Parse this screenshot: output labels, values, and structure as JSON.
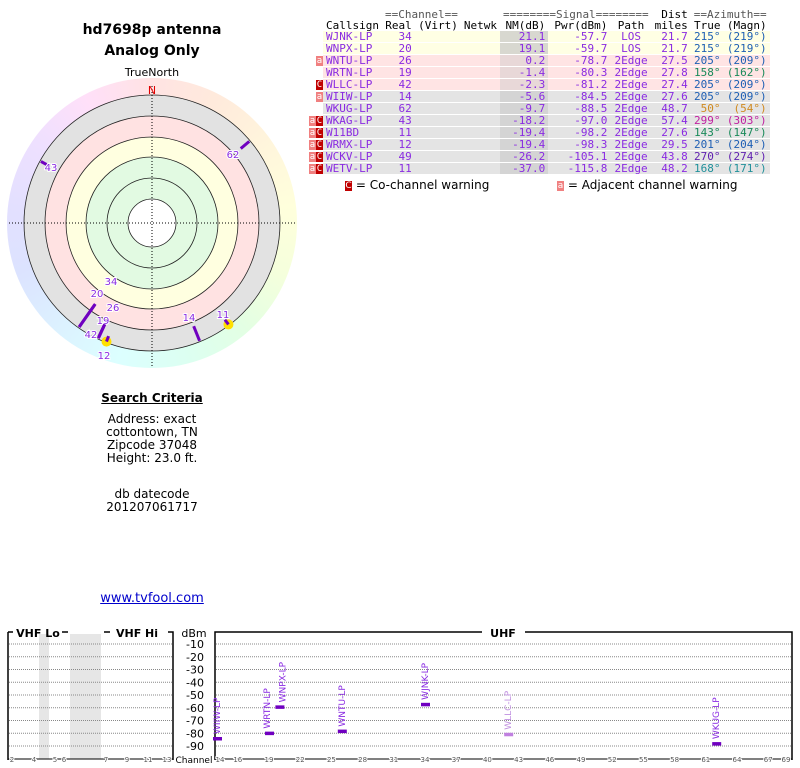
{
  "header": {
    "title": "hd7698p antenna",
    "subtitle": "Analog Only"
  },
  "polar": {
    "north_label": "TrueNorth",
    "n_marker": "N",
    "markers": [
      {
        "label": "34",
        "azimuth": 215,
        "nm": 21.1
      },
      {
        "label": "20",
        "azimuth": 215,
        "nm": 19.1
      },
      {
        "label": "26",
        "azimuth": 205,
        "nm": 0.2
      },
      {
        "label": "19",
        "azimuth": 158,
        "nm": -1.4
      },
      {
        "label": "42",
        "azimuth": 205,
        "nm": -2.3
      },
      {
        "label": "14",
        "azimuth": 205,
        "nm": -5.6
      },
      {
        "label": "62",
        "azimuth": 50,
        "nm": -9.7
      },
      {
        "label": "43",
        "azimuth": 299,
        "nm": -18.2
      },
      {
        "label": "11",
        "azimuth": 143,
        "nm": -19.4,
        "highlight": true
      },
      {
        "label": "12",
        "azimuth": 201,
        "nm": -19.4,
        "highlight": true
      }
    ]
  },
  "search": {
    "heading": "Search Criteria",
    "address": "Address: exact",
    "city": "cottontown, TN",
    "zip": "Zipcode 37048",
    "height": "Height: 23.0 ft.",
    "db_label": "db datecode",
    "db_value": "201207061717",
    "link": "www.tvfool.com"
  },
  "table": {
    "group_headers": {
      "channel": "==Channel==",
      "signal": "========Signal========",
      "dist": "Dist",
      "azimuth": "==Azimuth=="
    },
    "columns": [
      "Callsign",
      "Real",
      "(Virt)",
      "Netwk",
      "NM(dB)",
      "Pwr(dBm)",
      "Path",
      "miles",
      "True",
      "(Magn)"
    ],
    "rows": [
      {
        "warn": "",
        "band": "y",
        "callsign": "WJNK-LP",
        "real": "34",
        "virt": "",
        "netwk": "",
        "nm": "21.1",
        "pwr": "-57.7",
        "path": "LOS",
        "dist": "21.7",
        "true": "215°",
        "magn": "(219°)",
        "az_color": "#1e5fb4"
      },
      {
        "warn": "",
        "band": "y",
        "callsign": "WNPX-LP",
        "real": "20",
        "virt": "",
        "netwk": "",
        "nm": "19.1",
        "pwr": "-59.7",
        "path": "LOS",
        "dist": "21.7",
        "true": "215°",
        "magn": "(219°)",
        "az_color": "#1e5fb4"
      },
      {
        "warn": "a",
        "band": "p",
        "callsign": "WNTU-LP",
        "real": "26",
        "virt": "",
        "netwk": "",
        "nm": "0.2",
        "pwr": "-78.7",
        "path": "2Edge",
        "dist": "27.5",
        "true": "205°",
        "magn": "(209°)",
        "az_color": "#1e5fb4"
      },
      {
        "warn": "",
        "band": "p",
        "callsign": "WRTN-LP",
        "real": "19",
        "virt": "",
        "netwk": "",
        "nm": "-1.4",
        "pwr": "-80.3",
        "path": "2Edge",
        "dist": "27.8",
        "true": "158°",
        "magn": "(162°)",
        "az_color": "#1a8a5a"
      },
      {
        "warn": "C",
        "band": "p",
        "callsign": "WLLC-LP",
        "real": "42",
        "virt": "",
        "netwk": "",
        "nm": "-2.3",
        "pwr": "-81.2",
        "path": "2Edge",
        "dist": "27.4",
        "true": "205°",
        "magn": "(209°)",
        "az_color": "#1e5fb4"
      },
      {
        "warn": "a",
        "band": "g",
        "callsign": "WIIW-LP",
        "real": "14",
        "virt": "",
        "netwk": "",
        "nm": "-5.6",
        "pwr": "-84.5",
        "path": "2Edge",
        "dist": "27.6",
        "true": "205°",
        "magn": "(209°)",
        "az_color": "#1e5fb4"
      },
      {
        "warn": "",
        "band": "g",
        "callsign": "WKUG-LP",
        "real": "62",
        "virt": "",
        "netwk": "",
        "nm": "-9.7",
        "pwr": "-88.5",
        "path": "2Edge",
        "dist": "48.7",
        "true": "50°",
        "magn": "(54°)",
        "az_color": "#d08a20"
      },
      {
        "warn": "aC",
        "band": "g",
        "callsign": "WKAG-LP",
        "real": "43",
        "virt": "",
        "netwk": "",
        "nm": "-18.2",
        "pwr": "-97.0",
        "path": "2Edge",
        "dist": "57.4",
        "true": "299°",
        "magn": "(303°)",
        "az_color": "#c020a0"
      },
      {
        "warn": "aC",
        "band": "g",
        "callsign": "W11BD",
        "real": "11",
        "virt": "",
        "netwk": "",
        "nm": "-19.4",
        "pwr": "-98.2",
        "path": "2Edge",
        "dist": "27.6",
        "true": "143°",
        "magn": "(147°)",
        "az_color": "#1a8a5a"
      },
      {
        "warn": "aC",
        "band": "g",
        "callsign": "WRMX-LP",
        "real": "12",
        "virt": "",
        "netwk": "",
        "nm": "-19.4",
        "pwr": "-98.3",
        "path": "2Edge",
        "dist": "29.5",
        "true": "201°",
        "magn": "(204°)",
        "az_color": "#1e5fb4"
      },
      {
        "warn": "aC",
        "band": "g",
        "callsign": "WCKV-LP",
        "real": "49",
        "virt": "",
        "netwk": "",
        "nm": "-26.2",
        "pwr": "-105.1",
        "path": "2Edge",
        "dist": "43.8",
        "true": "270°",
        "magn": "(274°)",
        "az_color": "#6020b0"
      },
      {
        "warn": "aC",
        "band": "g",
        "callsign": "WETV-LP",
        "real": "11",
        "virt": "",
        "netwk": "",
        "nm": "-37.0",
        "pwr": "-115.8",
        "path": "2Edge",
        "dist": "48.2",
        "true": "168°",
        "magn": "(171°)",
        "az_color": "#20909a"
      }
    ],
    "legend": {
      "co_symbol": "C",
      "co_text": "= Co-channel warning",
      "adj_symbol": "a",
      "adj_text": "= Adjacent channel warning"
    }
  },
  "spectrum": {
    "vhf_lo": "VHF Lo",
    "vhf_hi": "VHF Hi",
    "uhf": "UHF",
    "dbm_label": "dBm",
    "channel_label": "Channel",
    "dbm_ticks": [
      "-10",
      "-20",
      "-30",
      "-40",
      "-50",
      "-60",
      "-70",
      "-80",
      "-90"
    ],
    "vhf_channels": [
      "2",
      "4",
      "5",
      "6",
      "7",
      "9",
      "11",
      "13"
    ],
    "uhf_channels": [
      "14",
      "16",
      "19",
      "22",
      "25",
      "28",
      "31",
      "34",
      "37",
      "40",
      "43",
      "46",
      "49",
      "52",
      "55",
      "58",
      "61",
      "64",
      "67",
      "69"
    ],
    "stations": [
      {
        "callsign": "WIIW-LP",
        "channel": 14,
        "pwr": -84.5
      },
      {
        "callsign": "WRTN-LP",
        "channel": 19,
        "pwr": -80.3
      },
      {
        "callsign": "WNPX-LP",
        "channel": 20,
        "pwr": -59.7
      },
      {
        "callsign": "WNTU-LP",
        "channel": 26,
        "pwr": -78.7
      },
      {
        "callsign": "WJNK-LP",
        "channel": 34,
        "pwr": -57.7
      },
      {
        "callsign": "WLLC-LP",
        "channel": 42,
        "pwr": -81.2,
        "faded": true
      },
      {
        "callsign": "WKUG-LP",
        "channel": 62,
        "pwr": -88.5
      }
    ],
    "colors": {
      "bar": "#7000c0",
      "faded": "#c080e0"
    }
  }
}
